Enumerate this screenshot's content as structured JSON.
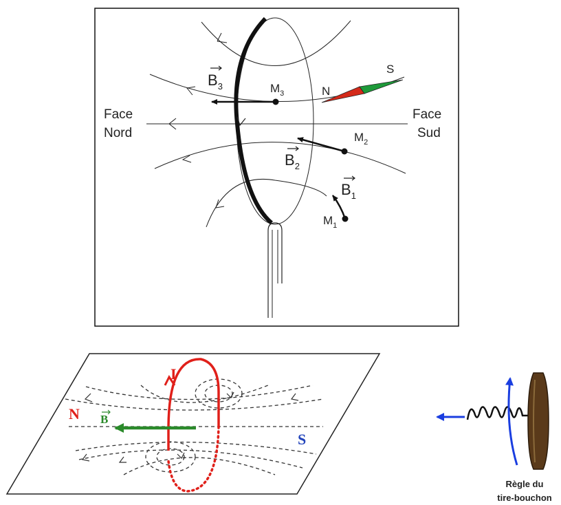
{
  "top_figure": {
    "face_left": [
      "Face",
      "Nord"
    ],
    "face_right": [
      "Face",
      "Sud"
    ],
    "vectors": {
      "b1": {
        "letter": "B",
        "sub": "1"
      },
      "b2": {
        "letter": "B",
        "sub": "2"
      },
      "b3": {
        "letter": "B",
        "sub": "3"
      }
    },
    "points": {
      "m1": {
        "letter": "M",
        "sub": "1"
      },
      "m2": {
        "letter": "M",
        "sub": "2"
      },
      "m3": {
        "letter": "M",
        "sub": "3"
      }
    },
    "compass": {
      "north": "N",
      "south": "S",
      "north_color": "#d42a1a",
      "south_color": "#1e9a3a"
    }
  },
  "bottom_figure": {
    "current_label": "I",
    "field_label": "B",
    "north_label": "N",
    "south_label": "S",
    "current_color": "#e0201a",
    "field_color": "#2a8a2a",
    "south_color": "#2244bb"
  },
  "rule": {
    "title_line1": "Règle du",
    "title_line2": "tire-bouchon",
    "arrow_color": "#1a3ee0",
    "cork_color": "#5a3a1a"
  }
}
